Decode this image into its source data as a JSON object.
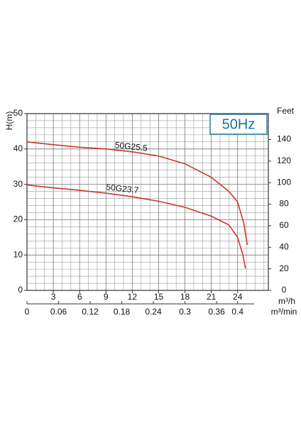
{
  "chart_data": {
    "type": "line",
    "annotation": "50Hz",
    "y_label": "H(m)",
    "y2_label": "Feet",
    "x_label": "m³/h",
    "x2_label": "m³/min",
    "xlim": [
      0,
      27.5
    ],
    "xticks": [
      3,
      6,
      9,
      12,
      15,
      18,
      21,
      24
    ],
    "x2lim": [
      0,
      0.4583
    ],
    "x2ticks": [
      0,
      0.06,
      0.12,
      0.18,
      0.24,
      0.3,
      0.36,
      0.4
    ],
    "ylim": [
      0,
      50
    ],
    "yticks": [
      0,
      10,
      20,
      30,
      40,
      50
    ],
    "y2lim": [
      0,
      164.04
    ],
    "y2ticks": [
      0,
      20,
      40,
      60,
      80,
      100,
      120,
      140
    ],
    "minor_xticks": [
      1,
      2,
      4,
      5,
      7,
      8,
      10,
      11,
      13,
      14,
      16,
      17,
      19,
      20,
      22,
      23,
      25,
      26,
      27
    ],
    "minor_yticks": [
      2,
      4,
      6,
      8,
      12,
      14,
      16,
      18,
      22,
      24,
      26,
      28,
      32,
      34,
      36,
      38,
      42,
      44,
      46,
      48
    ],
    "grid": true,
    "series": [
      {
        "name": "50G25.5",
        "color": "#c8382e",
        "x": [
          0,
          3,
          6,
          9,
          12,
          15,
          18,
          21,
          23,
          24,
          24.7,
          25.1
        ],
        "values": [
          42,
          41.2,
          40.5,
          40,
          39.2,
          38,
          35.8,
          32,
          28,
          25,
          19,
          12.9
        ]
      },
      {
        "name": "50G23.7",
        "color": "#c8382e",
        "x": [
          0,
          3,
          6,
          9,
          12,
          15,
          18,
          21,
          23,
          24,
          24.6,
          24.9
        ],
        "values": [
          29.8,
          29,
          28.3,
          27.5,
          26.5,
          25.2,
          23.5,
          21,
          18.5,
          15,
          10,
          6.2
        ]
      }
    ]
  }
}
